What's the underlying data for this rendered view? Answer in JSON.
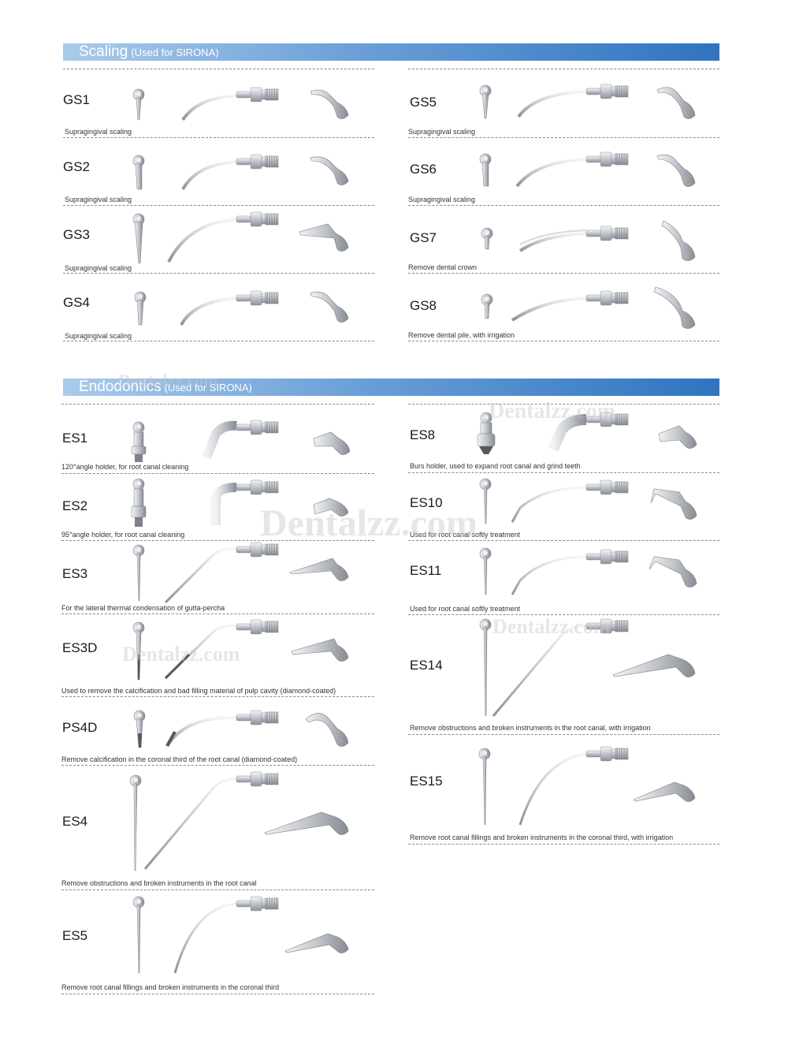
{
  "sections": {
    "scaling": {
      "title": "Scaling",
      "subtitle": "(Used for SIRONA)"
    },
    "endo": {
      "title": "Endodontics",
      "subtitle": "(Used for SIRONA)"
    }
  },
  "tips": {
    "gs1": {
      "code": "GS1",
      "desc": "Supragingival scaling"
    },
    "gs2": {
      "code": "GS2",
      "desc": "Supragingival scaling"
    },
    "gs3": {
      "code": "GS3",
      "desc": "Supragingival scaling"
    },
    "gs4": {
      "code": "GS4",
      "desc": "Supragingival scaling"
    },
    "gs5": {
      "code": "GS5",
      "desc": "Supragingival scaling"
    },
    "gs6": {
      "code": "GS6",
      "desc": "Supragingival scaling"
    },
    "gs7": {
      "code": "GS7",
      "desc": "Remove dental crown"
    },
    "gs8": {
      "code": "GS8",
      "desc": "Remove dental pile, with irrigation"
    },
    "es1": {
      "code": "ES1",
      "desc": "120°angle holder, for root canal cleaning"
    },
    "es2": {
      "code": "ES2",
      "desc": "95°angle holder, for root canal cleaning"
    },
    "es3": {
      "code": "ES3",
      "desc": "For the lateral thermal condensation of gutta-percha"
    },
    "es3d": {
      "code": "ES3D",
      "desc": "Used to remove the calcification and bad filling material of pulp cavity (diamond-coated)"
    },
    "ps4d": {
      "code": "PS4D",
      "desc": "Remove calcification in the coronal third of the root canal (diamond-coated)"
    },
    "es4": {
      "code": "ES4",
      "desc": "Remove obstructions and broken instruments in the root canal"
    },
    "es5": {
      "code": "ES5",
      "desc": "Remove root canal fillings and broken instruments in the coronal third"
    },
    "es8": {
      "code": "ES8",
      "desc": "Burs holder, used to expand root canal and grind teeth"
    },
    "es10": {
      "code": "ES10",
      "desc": "Used for root canal softly treatment"
    },
    "es11": {
      "code": "ES11",
      "desc": "Used for root canal softly treatment"
    },
    "es14": {
      "code": "ES14",
      "desc": "Remove obstructions and broken instruments in the root canal, with irrigation"
    },
    "es15": {
      "code": "ES15",
      "desc": "Remove root canal fillings and broken instruments in the coronal third, with irrigation"
    }
  },
  "watermark": "Dentalzz.com",
  "colors": {
    "banner_start": "#aacbea",
    "banner_end": "#2f74c0",
    "metal": "#c9ccd2",
    "dash": "#8a8a8a"
  }
}
